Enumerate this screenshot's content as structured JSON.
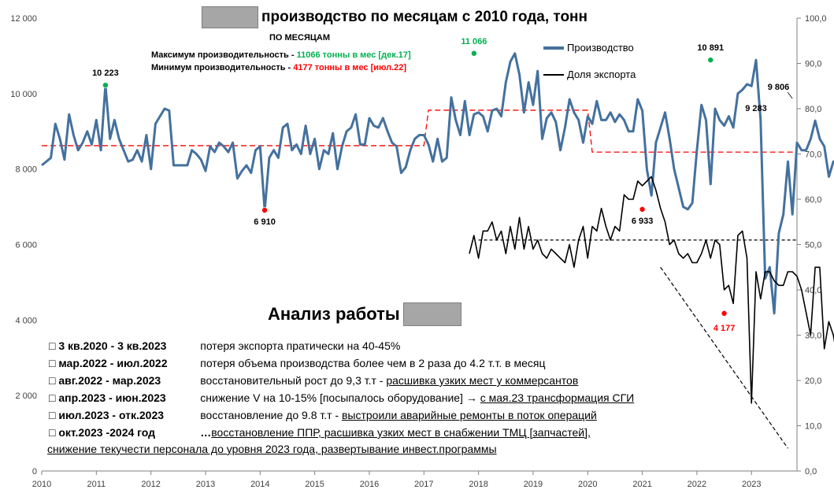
{
  "title": "производство по месяцам с 2010 года, тонн",
  "subtitle": "ПО МЕСЯЦАМ",
  "stats": {
    "max_label": "Максимум производительность -",
    "max_value": "11066 тонны в мес [дек.17]",
    "min_label": "Минимум  производительность  -",
    "min_value": "4177 тонны в мес [июл.22]",
    "max_color": "#00b050",
    "min_color": "#ff0000"
  },
  "legend": {
    "production": "Производство",
    "export": "Доля экспорта"
  },
  "analysis": {
    "title": "Анализ работы",
    "items": [
      {
        "bullet": "□",
        "period": "3 кв.2020  - 3 кв.2023",
        "text": "потеря экспорта пратически на 40-45%",
        "link": ""
      },
      {
        "bullet": "□",
        "period": "мар.2022 - июл.2022",
        "text": "потеря объема производства более чем в 2 раза до 4.2 т.т. в месяц",
        "link": ""
      },
      {
        "bullet": "□",
        "period": "авг.2022   - мар.2023",
        "text": "восстановительный рост до 9,3 т.т  -",
        "link": "расшивка узких мест у коммерсантов"
      },
      {
        "bullet": "□",
        "period": "апр.2023  - июн.2023",
        "text": "снижение V на 10-15% [посыпалось оборудование]  →",
        "link": "с мая.23 трансформация СГИ"
      },
      {
        "bullet": "□",
        "period": "июл.2023 - отк.2023",
        "text": "восстановление  до 9.8 т.т  -",
        "link": "выстроили аварийные ремонты в поток операций"
      },
      {
        "bullet": "□",
        "period": "окт.2023 -2024 год",
        "text": "…",
        "link": "восстановление  ППР, расшивка узких мест в снабжении ТМЦ [запчастей],"
      }
    ],
    "line2": "снижение текучести персонала до уровня 2023 года, развертывание инвест.программы"
  },
  "colors": {
    "production": "#44719e",
    "export": "#000000",
    "avg_line": "#ff0000",
    "max_marker": "#00b050",
    "min_marker": "#ff0000",
    "redact": "#a6a6a6"
  },
  "chart_data": {
    "type": "line",
    "x_axis": {
      "ticks": [
        "2010",
        "2011",
        "2012",
        "2013",
        "2014",
        "2015",
        "2016",
        "2017",
        "2018",
        "2019",
        "2020",
        "2021",
        "2022",
        "2023"
      ],
      "range": [
        2010,
        2023.833
      ]
    },
    "y_left": {
      "min": 0,
      "max": 12000,
      "ticks": [
        "0",
        "2 000",
        "4 000",
        "6 000",
        "8 000",
        "10 000",
        "12 000"
      ]
    },
    "y_right": {
      "min": 0,
      "max": 100,
      "ticks": [
        "0,0",
        "10,0",
        "20,0",
        "30,0",
        "40,0",
        "50,0",
        "60,0",
        "70,0",
        "80,0",
        "90,0",
        "100,0"
      ]
    },
    "series": [
      {
        "name": "Производство",
        "axis": "left",
        "start": 2010,
        "step_months": 1,
        "values": [
          8100,
          8200,
          8300,
          9200,
          8800,
          8250,
          9450,
          8900,
          8500,
          8700,
          9000,
          8650,
          9300,
          8500,
          10223,
          8800,
          9300,
          8800,
          8500,
          8200,
          8250,
          8500,
          8200,
          8900,
          8000,
          9200,
          9400,
          9600,
          9550,
          8100,
          8100,
          8100,
          8100,
          8500,
          8400,
          8250,
          7950,
          8600,
          8450,
          8700,
          8600,
          8450,
          8700,
          7750,
          7950,
          8100,
          7900,
          8500,
          8600,
          6910,
          8300,
          8500,
          8300,
          9100,
          9200,
          8500,
          8650,
          8400,
          9150,
          8400,
          8800,
          8000,
          8500,
          8400,
          8950,
          8000,
          8600,
          9000,
          9100,
          9450,
          8650,
          8650,
          9350,
          9150,
          9100,
          9350,
          9000,
          8700,
          8600,
          7900,
          8050,
          8500,
          8800,
          8900,
          8900,
          8650,
          8200,
          8800,
          8200,
          8300,
          9900,
          9300,
          8900,
          9800,
          8900,
          9450,
          9500,
          9400,
          9000,
          9550,
          9600,
          9400,
          10300,
          10850,
          11066,
          10500,
          9500,
          10300,
          9700,
          10600,
          8800,
          9350,
          9500,
          9250,
          8500,
          9100,
          9850,
          9500,
          9300,
          8700,
          9400,
          9200,
          9800,
          9300,
          9300,
          9500,
          9250,
          9450,
          9300,
          9000,
          9000,
          9850,
          9550,
          8000,
          7300,
          8700,
          9100,
          9500,
          8800,
          8000,
          7500,
          7000,
          6933,
          7100,
          8500,
          9700,
          9300,
          7600,
          9600,
          9300,
          9150,
          9400,
          9100,
          10000,
          10100,
          10250,
          10200,
          10891,
          9300,
          5100,
          5400,
          4177,
          6300,
          6800,
          8200,
          6800,
          8700,
          8500,
          8500,
          8800,
          9283,
          8800,
          8600,
          7800,
          8200,
          8100,
          8200,
          9806
        ]
      },
      {
        "name": "Доля экспорта",
        "axis": "right",
        "start": 2017.833,
        "step_months": 1,
        "values": [
          48,
          52,
          47,
          53,
          53,
          55,
          51,
          53,
          48,
          54,
          49,
          56,
          49,
          54,
          49,
          51,
          48,
          47,
          49,
          48,
          47,
          46,
          50,
          45,
          51,
          54,
          47,
          54,
          53,
          58,
          54,
          51,
          54,
          53,
          61,
          60,
          60,
          64,
          63,
          64,
          65,
          62,
          58,
          55,
          50,
          51,
          48,
          47,
          48,
          46,
          46,
          48,
          51,
          47,
          51,
          50,
          40,
          41,
          37,
          52,
          53,
          47,
          15,
          44,
          38,
          44,
          44,
          42,
          41,
          41,
          44,
          44,
          43,
          40,
          35,
          30,
          45,
          45,
          27,
          33,
          30,
          24,
          37,
          32,
          30,
          27,
          25,
          23,
          21,
          18,
          16,
          14,
          12,
          10,
          6,
          4,
          6,
          5
        ]
      }
    ],
    "threshold_lines": [
      {
        "axis": "left",
        "style": "red-dashed",
        "segments": [
          [
            2010,
            2017,
            8620
          ],
          [
            2017.083,
            2020,
            9560
          ],
          [
            2020.083,
            2023.833,
            8450
          ]
        ]
      },
      {
        "axis": "right",
        "style": "black-dashed",
        "segments": [
          [
            2018,
            2023.833,
            51
          ]
        ]
      },
      {
        "axis": "right",
        "style": "black-dashed-trend",
        "from": [
          2021.333,
          45
        ],
        "to": [
          2023.667,
          5
        ]
      }
    ],
    "point_labels": [
      {
        "text": "10 223",
        "x": 2011.167,
        "axis": "left",
        "value": 10223,
        "marker": "max",
        "color": "#000000"
      },
      {
        "text": "6 910",
        "x": 2014.083,
        "axis": "left",
        "value": 6910,
        "marker": "min",
        "color": "#000000"
      },
      {
        "text": "11 066",
        "x": 2017.917,
        "axis": "left",
        "value": 11066,
        "marker": "max",
        "color": "#00b050"
      },
      {
        "text": "6 933",
        "x": 2021.0,
        "axis": "left",
        "value": 6933,
        "marker": "min",
        "color": "#000000"
      },
      {
        "text": "10 891",
        "x": 2022.25,
        "axis": "left",
        "value": 10891,
        "marker": "max",
        "color": "#000000"
      },
      {
        "text": "4 177",
        "x": 2022.5,
        "axis": "left",
        "value": 4177,
        "marker": "min",
        "color": "#ff0000"
      },
      {
        "text": "9 283",
        "x": 2023.083,
        "axis": "left",
        "value": 9283,
        "marker": "",
        "color": "#000000"
      },
      {
        "text": "9 806",
        "x": 2023.75,
        "axis": "left",
        "value": 9806,
        "marker": "",
        "color": "#000000"
      }
    ],
    "grid": false,
    "legend_position": "top-right"
  }
}
